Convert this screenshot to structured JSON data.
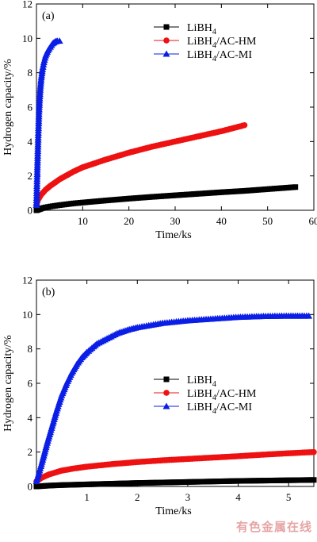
{
  "colors": {
    "black": "#000000",
    "red": "#ee1111",
    "blue": "#0a1ee6"
  },
  "watermark": "有色金属在线",
  "chart_data": [
    {
      "type": "scatter",
      "panel": "(a)",
      "xlabel": "Time/ks",
      "ylabel": "Hydrogen capacity/%",
      "xlim": [
        0,
        60
      ],
      "ylim": [
        0,
        12
      ],
      "xticks": [
        "10",
        "20",
        "30",
        "40",
        "50",
        "60"
      ],
      "yticks": [
        "0",
        "2",
        "4",
        "6",
        "8",
        "10",
        "12"
      ],
      "legend_position": "top-right",
      "series": [
        {
          "name_main": "LiBH",
          "name_sub": "4",
          "name_rest": "",
          "color": "#000000",
          "marker": "square",
          "points": [
            [
              0,
              0
            ],
            [
              0.5,
              0.05
            ],
            [
              1,
              0.1
            ],
            [
              2,
              0.17
            ],
            [
              3,
              0.22
            ],
            [
              5,
              0.3
            ],
            [
              8,
              0.4
            ],
            [
              10,
              0.45
            ],
            [
              15,
              0.57
            ],
            [
              20,
              0.68
            ],
            [
              25,
              0.78
            ],
            [
              30,
              0.87
            ],
            [
              35,
              0.96
            ],
            [
              40,
              1.05
            ],
            [
              45,
              1.13
            ],
            [
              50,
              1.23
            ],
            [
              56,
              1.35
            ]
          ]
        },
        {
          "name_main": "LiBH",
          "name_sub": "4",
          "name_rest": "/AC-HM",
          "color": "#ee1111",
          "marker": "circle",
          "points": [
            [
              0,
              0.3
            ],
            [
              0.3,
              0.6
            ],
            [
              1,
              0.9
            ],
            [
              2,
              1.2
            ],
            [
              3,
              1.42
            ],
            [
              5,
              1.8
            ],
            [
              8,
              2.25
            ],
            [
              10,
              2.5
            ],
            [
              15,
              2.95
            ],
            [
              20,
              3.35
            ],
            [
              25,
              3.7
            ],
            [
              30,
              4.0
            ],
            [
              35,
              4.3
            ],
            [
              40,
              4.6
            ],
            [
              45,
              4.95
            ]
          ]
        },
        {
          "name_main": "LiBH",
          "name_sub": "4",
          "name_rest": "/AC-MI",
          "color": "#0a1ee6",
          "marker": "triangle",
          "points": [
            [
              0,
              0.3
            ],
            [
              0.2,
              2.5
            ],
            [
              0.4,
              4.5
            ],
            [
              0.6,
              6
            ],
            [
              0.8,
              7
            ],
            [
              1,
              7.6
            ],
            [
              1.3,
              8.2
            ],
            [
              1.6,
              8.6
            ],
            [
              2,
              9
            ],
            [
              2.5,
              9.3
            ],
            [
              3,
              9.5
            ],
            [
              3.5,
              9.7
            ],
            [
              4,
              9.8
            ],
            [
              4.5,
              9.85
            ],
            [
              5,
              9.85
            ]
          ]
        }
      ]
    },
    {
      "type": "scatter",
      "panel": "(b)",
      "xlabel": "Time/ks",
      "ylabel": "Hydrogen capacity/%",
      "xlim": [
        0,
        5.5
      ],
      "ylim": [
        0,
        12
      ],
      "xticks": [
        "1",
        "2",
        "3",
        "4",
        "5"
      ],
      "yticks": [
        "0",
        "2",
        "4",
        "6",
        "8",
        "10",
        "12"
      ],
      "legend_position": "center-right",
      "series": [
        {
          "name_main": "LiBH",
          "name_sub": "4",
          "name_rest": "",
          "color": "#000000",
          "marker": "square",
          "points": [
            [
              0,
              0
            ],
            [
              0.25,
              0.05
            ],
            [
              0.5,
              0.08
            ],
            [
              1,
              0.12
            ],
            [
              1.5,
              0.16
            ],
            [
              2,
              0.2
            ],
            [
              2.5,
              0.23
            ],
            [
              3,
              0.26
            ],
            [
              3.5,
              0.29
            ],
            [
              4,
              0.32
            ],
            [
              4.5,
              0.34
            ],
            [
              5,
              0.36
            ],
            [
              5.5,
              0.38
            ]
          ]
        },
        {
          "name_main": "LiBH",
          "name_sub": "4",
          "name_rest": "/AC-HM",
          "color": "#ee1111",
          "marker": "circle",
          "points": [
            [
              0,
              0.3
            ],
            [
              0.1,
              0.5
            ],
            [
              0.25,
              0.7
            ],
            [
              0.5,
              0.92
            ],
            [
              0.75,
              1.05
            ],
            [
              1,
              1.15
            ],
            [
              1.5,
              1.3
            ],
            [
              2,
              1.42
            ],
            [
              2.5,
              1.52
            ],
            [
              3,
              1.6
            ],
            [
              3.5,
              1.68
            ],
            [
              4,
              1.76
            ],
            [
              4.5,
              1.85
            ],
            [
              5,
              1.93
            ],
            [
              5.5,
              2.0
            ]
          ]
        },
        {
          "name_main": "LiBH",
          "name_sub": "4",
          "name_rest": "/AC-MI",
          "color": "#0a1ee6",
          "marker": "triangle",
          "points": [
            [
              0,
              0.3
            ],
            [
              0.1,
              1.3
            ],
            [
              0.2,
              2.4
            ],
            [
              0.3,
              3.4
            ],
            [
              0.4,
              4.4
            ],
            [
              0.5,
              5.3
            ],
            [
              0.6,
              6
            ],
            [
              0.7,
              6.6
            ],
            [
              0.8,
              7.1
            ],
            [
              0.9,
              7.5
            ],
            [
              1,
              7.8
            ],
            [
              1.2,
              8.3
            ],
            [
              1.4,
              8.6
            ],
            [
              1.6,
              8.9
            ],
            [
              1.8,
              9.1
            ],
            [
              2,
              9.25
            ],
            [
              2.5,
              9.5
            ],
            [
              3,
              9.65
            ],
            [
              3.5,
              9.75
            ],
            [
              4,
              9.85
            ],
            [
              4.5,
              9.9
            ],
            [
              5,
              9.92
            ],
            [
              5.4,
              9.92
            ]
          ]
        }
      ]
    }
  ]
}
